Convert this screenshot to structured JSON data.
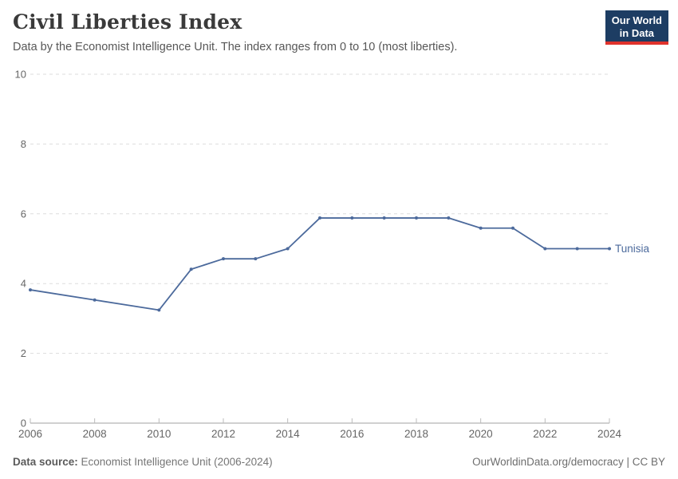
{
  "header": {
    "title": "Civil Liberties Index",
    "subtitle": "Data by the Economist Intelligence Unit. The index ranges from 0 to 10 (most liberties).",
    "logo": {
      "line1": "Our World",
      "line2": "in Data"
    }
  },
  "footer": {
    "source_label": "Data source:",
    "source_value": " Economist Intelligence Unit (2006-2024)",
    "rights": "OurWorldinData.org/democracy | CC BY"
  },
  "colors": {
    "series": "#4C6A9C",
    "grid": "#dddddd",
    "axis": "#a1a1a1",
    "tick_label": "#666666",
    "logo_bg": "#1d3d63",
    "logo_accent": "#e0332c"
  },
  "chart_data": {
    "type": "line",
    "title": "Civil Liberties Index",
    "subtitle": "Data by the Economist Intelligence Unit. The index ranges from 0 to 10 (most liberties).",
    "xlabel": "",
    "ylabel": "",
    "xlim": [
      2006,
      2024
    ],
    "ylim": [
      0,
      10
    ],
    "grid": "horizontal-dashed",
    "legend_position": "line-end-label",
    "xticks": [
      2006,
      2008,
      2010,
      2012,
      2014,
      2016,
      2018,
      2020,
      2022,
      2024
    ],
    "yticks": [
      0,
      2,
      4,
      6,
      8,
      10
    ],
    "series": [
      {
        "name": "Tunisia",
        "color": "#4C6A9C",
        "points": [
          [
            2006,
            3.82
          ],
          [
            2008,
            3.53
          ],
          [
            2010,
            3.24
          ],
          [
            2011,
            4.41
          ],
          [
            2012,
            4.71
          ],
          [
            2013,
            4.71
          ],
          [
            2014,
            5.0
          ],
          [
            2015,
            5.88
          ],
          [
            2016,
            5.88
          ],
          [
            2017,
            5.88
          ],
          [
            2018,
            5.88
          ],
          [
            2019,
            5.88
          ],
          [
            2020,
            5.59
          ],
          [
            2021,
            5.59
          ],
          [
            2022,
            5.0
          ],
          [
            2023,
            5.0
          ],
          [
            2024,
            5.0
          ]
        ]
      }
    ]
  }
}
